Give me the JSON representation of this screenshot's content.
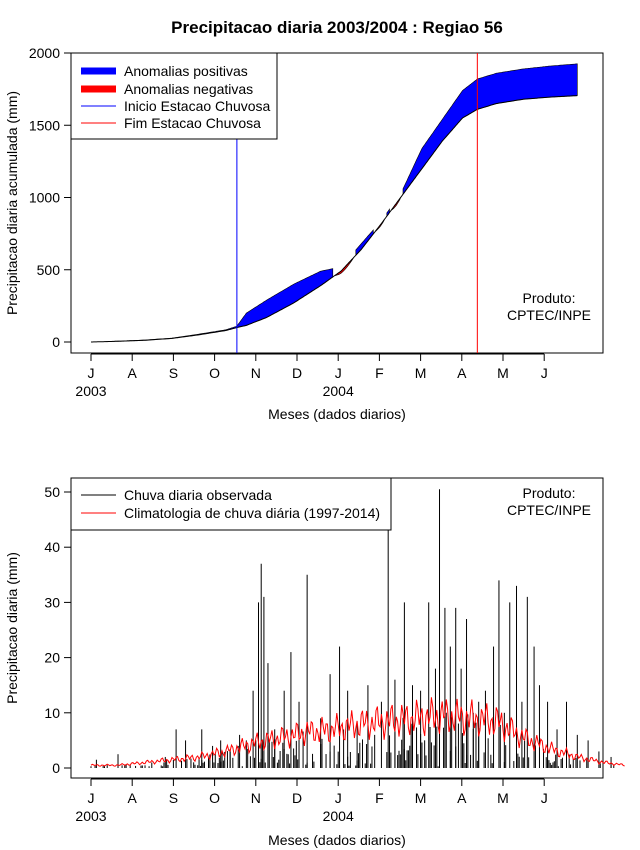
{
  "colors": {
    "positive": "#0000ff",
    "negative": "#ff0000",
    "rain_bars": "#000000",
    "climatology": "#ff0000",
    "onset_line": "#0000ff",
    "end_line": "#ff0000"
  },
  "chart_data": [
    {
      "type": "area",
      "title": "Precipitacao diaria 2003/2004 : Regiao 56",
      "xlabel": "Meses (dados diarios)",
      "ylabel": "Precipitacao diaria acumulada (mm)",
      "ylim": [
        0,
        2000
      ],
      "yticks": [
        0,
        500,
        1000,
        1500,
        2000
      ],
      "month_ticks": [
        "J",
        "A",
        "S",
        "O",
        "N",
        "D",
        "J",
        "F",
        "M",
        "A",
        "M",
        "J"
      ],
      "year_labels": [
        {
          "label": "2003",
          "month_index": 0
        },
        {
          "label": "2004",
          "month_index": 6
        }
      ],
      "legend": {
        "position": "top-left",
        "entries": [
          "Anomalias positivas",
          "Anomalias negativas",
          "Inicio Estacao Chuvosa",
          "Fim Estacao Chuvosa"
        ]
      },
      "annotation": [
        "Produto:",
        "CPTEC/INPE"
      ],
      "onset_day": 108,
      "end_day": 286,
      "x_days": [
        0,
        20,
        40,
        60,
        80,
        100,
        108,
        115,
        130,
        150,
        170,
        185,
        200,
        215,
        230,
        245,
        260,
        275,
        286,
        300,
        320,
        340,
        360
      ],
      "series": [
        {
          "name": "Climatologia acumulada",
          "values": [
            0,
            5,
            12,
            25,
            50,
            80,
            100,
            115,
            170,
            270,
            390,
            490,
            640,
            820,
            1010,
            1200,
            1390,
            1550,
            1610,
            1650,
            1680,
            1695,
            1705
          ]
        },
        {
          "name": "Observado acumulado",
          "values": [
            0,
            6,
            14,
            27,
            55,
            85,
            110,
            200,
            290,
            400,
            490,
            520,
            680,
            840,
            1040,
            1340,
            1540,
            1740,
            1820,
            1860,
            1890,
            1910,
            1925
          ]
        }
      ]
    },
    {
      "type": "bar",
      "title": "",
      "xlabel": "Meses (dados diarios)",
      "ylabel": "Precipitacao diaria (mm)",
      "ylim": [
        0,
        50
      ],
      "yticks": [
        0,
        10,
        20,
        30,
        40,
        50
      ],
      "month_ticks": [
        "J",
        "A",
        "S",
        "O",
        "N",
        "D",
        "J",
        "F",
        "M",
        "A",
        "M",
        "J"
      ],
      "year_labels": [
        {
          "label": "2003",
          "month_index": 0
        },
        {
          "label": "2004",
          "month_index": 6
        }
      ],
      "legend": {
        "position": "top-left",
        "entries": [
          "Chuva diaria observada",
          "Climatologia de chuva diária (1997-2014)"
        ]
      },
      "annotation": [
        "Produto:",
        "CPTEC/INPE"
      ],
      "rain_peaks": [
        {
          "day": 4,
          "value": 1.5
        },
        {
          "day": 20,
          "value": 2.5
        },
        {
          "day": 45,
          "value": 1
        },
        {
          "day": 55,
          "value": 2
        },
        {
          "day": 63,
          "value": 7
        },
        {
          "day": 70,
          "value": 5
        },
        {
          "day": 82,
          "value": 7
        },
        {
          "day": 90,
          "value": 4
        },
        {
          "day": 96,
          "value": 5
        },
        {
          "day": 103,
          "value": 3
        },
        {
          "day": 110,
          "value": 6
        },
        {
          "day": 115,
          "value": 5
        },
        {
          "day": 120,
          "value": 14
        },
        {
          "day": 124,
          "value": 30
        },
        {
          "day": 126,
          "value": 37
        },
        {
          "day": 128,
          "value": 31
        },
        {
          "day": 131,
          "value": 19
        },
        {
          "day": 136,
          "value": 7
        },
        {
          "day": 143,
          "value": 14
        },
        {
          "day": 148,
          "value": 21
        },
        {
          "day": 154,
          "value": 12
        },
        {
          "day": 160,
          "value": 35
        },
        {
          "day": 170,
          "value": 9
        },
        {
          "day": 177,
          "value": 17
        },
        {
          "day": 184,
          "value": 22
        },
        {
          "day": 190,
          "value": 14
        },
        {
          "day": 197,
          "value": 8
        },
        {
          "day": 205,
          "value": 15
        },
        {
          "day": 210,
          "value": 6
        },
        {
          "day": 215,
          "value": 12
        },
        {
          "day": 220,
          "value": 44
        },
        {
          "day": 225,
          "value": 16
        },
        {
          "day": 232,
          "value": 30
        },
        {
          "day": 238,
          "value": 15
        },
        {
          "day": 244,
          "value": 14
        },
        {
          "day": 250,
          "value": 30
        },
        {
          "day": 255,
          "value": 18
        },
        {
          "day": 258,
          "value": 50.5
        },
        {
          "day": 262,
          "value": 29
        },
        {
          "day": 266,
          "value": 22
        },
        {
          "day": 270,
          "value": 29
        },
        {
          "day": 274,
          "value": 18
        },
        {
          "day": 278,
          "value": 27
        },
        {
          "day": 283,
          "value": 10
        },
        {
          "day": 287,
          "value": 12
        },
        {
          "day": 292,
          "value": 14
        },
        {
          "day": 298,
          "value": 22
        },
        {
          "day": 302,
          "value": 34
        },
        {
          "day": 306,
          "value": 10
        },
        {
          "day": 310,
          "value": 30
        },
        {
          "day": 315,
          "value": 33
        },
        {
          "day": 319,
          "value": 12
        },
        {
          "day": 323,
          "value": 31
        },
        {
          "day": 328,
          "value": 22
        },
        {
          "day": 332,
          "value": 15
        },
        {
          "day": 338,
          "value": 12
        },
        {
          "day": 345,
          "value": 7
        },
        {
          "day": 352,
          "value": 12
        },
        {
          "day": 360,
          "value": 6
        },
        {
          "day": 368,
          "value": 5
        },
        {
          "day": 376,
          "value": 3
        },
        {
          "day": 385,
          "value": 2
        }
      ],
      "climatology": {
        "x_days": [
          0,
          20,
          40,
          60,
          80,
          100,
          120,
          140,
          160,
          180,
          200,
          220,
          240,
          260,
          280,
          300,
          320,
          340,
          360,
          380,
          395
        ],
        "values": [
          0.5,
          0.5,
          1,
          1.5,
          2,
          3,
          4.5,
          5.5,
          6.5,
          7,
          8,
          8.5,
          9,
          9.5,
          9,
          8.5,
          5.5,
          3.5,
          2,
          1,
          0.5
        ]
      }
    }
  ]
}
